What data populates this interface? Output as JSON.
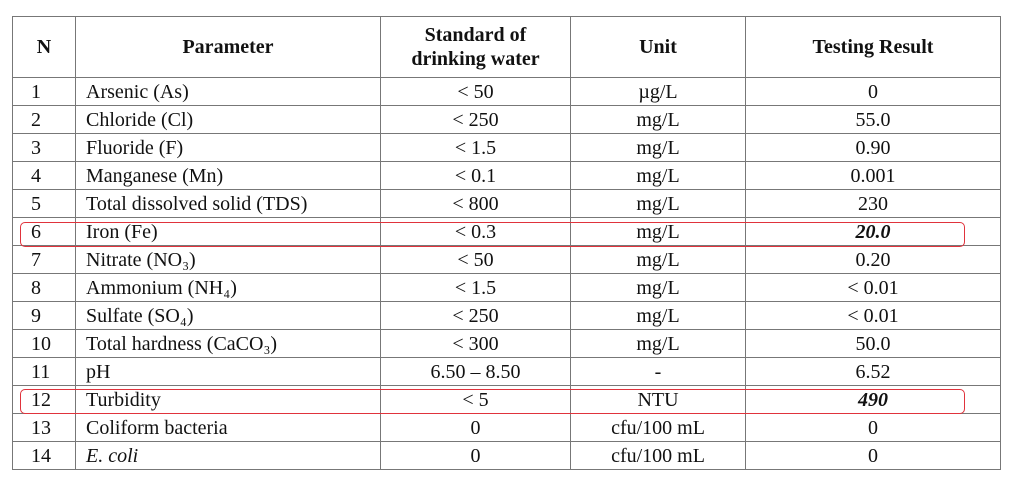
{
  "table": {
    "header": [
      "N",
      "Parameter",
      "Standard of drinking water",
      "Unit",
      "Testing Result"
    ],
    "rows": [
      [
        "1",
        "Arsenic (As)",
        "< 50",
        "µg/L",
        "0"
      ],
      [
        "2",
        "Chloride (Cl)",
        "< 250",
        "mg/L",
        "55.0"
      ],
      [
        "3",
        "Fluoride (F)",
        "< 1.5",
        "mg/L",
        "0.90"
      ],
      [
        "4",
        "Manganese (Mn)",
        "< 0.1",
        "mg/L",
        "0.001"
      ],
      [
        "5",
        "Total dissolved solid (TDS)",
        "< 800",
        "mg/L",
        "230"
      ],
      [
        "6",
        "Iron (Fe)",
        "< 0.3",
        "mg/L",
        "20.0"
      ],
      [
        "7",
        "Nitrate (NO₃)",
        "< 50",
        "mg/L",
        "0.20"
      ],
      [
        "8",
        "Ammonium (NH₄)",
        "< 1.5",
        "mg/L",
        "< 0.01"
      ],
      [
        "9",
        "Sulfate (SO₄)",
        "< 250",
        "mg/L",
        "< 0.01"
      ],
      [
        "10",
        "Total hardness (CaCO₃)",
        "< 300",
        "mg/L",
        "50.0"
      ],
      [
        "11",
        "pH",
        "6.50 – 8.50",
        "-",
        "6.52"
      ],
      [
        "12",
        "Turbidity",
        "< 5",
        "NTU",
        "490"
      ],
      [
        "13",
        "Coliform bacteria",
        "0",
        "cfu/100 mL",
        "0"
      ],
      [
        "14",
        "E. coli",
        "0",
        "cfu/100 mL",
        "0"
      ]
    ]
  }
}
